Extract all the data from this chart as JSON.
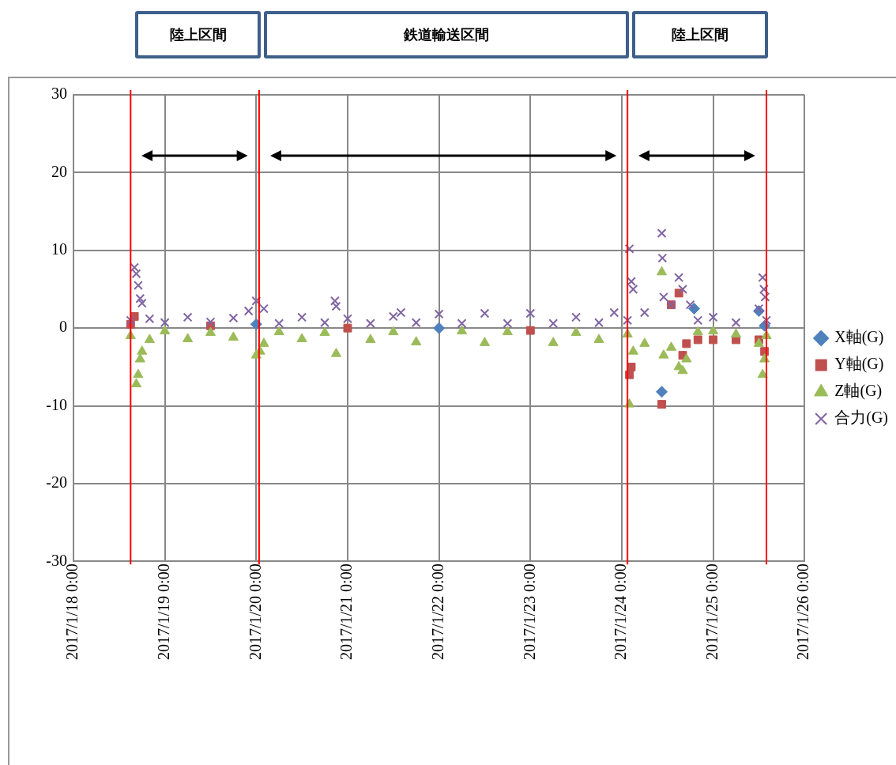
{
  "chart_data": {
    "type": "scatter",
    "annotations": [
      "陸上区間",
      "鉄道輸送区間",
      "陸上区間"
    ],
    "xlim": [
      "2017-01-18",
      "2017-01-26"
    ],
    "xticks": [
      {
        "value": "2017-01-18",
        "label": "2017/1/18 0:00"
      },
      {
        "value": "2017-01-19",
        "label": "2017/1/19 0:00"
      },
      {
        "value": "2017-01-20",
        "label": "2017/1/20 0:00"
      },
      {
        "value": "2017-01-21",
        "label": "2017/1/21 0:00"
      },
      {
        "value": "2017-01-22",
        "label": "2017/1/22 0:00"
      },
      {
        "value": "2017-01-23",
        "label": "2017/1/23 0:00"
      },
      {
        "value": "2017-01-24",
        "label": "2017/1/24 0:00"
      },
      {
        "value": "2017-01-25",
        "label": "2017/1/25 0:00"
      },
      {
        "value": "2017-01-26",
        "label": "2017/1/26 0:00"
      }
    ],
    "ylim": [
      -30,
      30
    ],
    "yticks": [
      -30,
      -20,
      -10,
      0,
      10,
      20,
      30
    ],
    "grid": true,
    "legend": "right",
    "ref_lines": [
      {
        "axis": "x",
        "value": "2017-01-18T15:00",
        "color": "#ff0000"
      },
      {
        "axis": "x",
        "value": "2017-01-20T00:45",
        "color": "#ff0000"
      },
      {
        "axis": "x",
        "value": "2017-01-24T01:30",
        "color": "#ff0000"
      },
      {
        "axis": "x",
        "value": "2017-01-25T14:00",
        "color": "#ff0000"
      }
    ],
    "series": [
      {
        "name": "X軸(G)",
        "color": "#4f81bd",
        "marker": "diamond",
        "x": [
          "2017-01-20T00:00",
          "2017-01-22T00:00",
          "2017-01-24T10:30",
          "2017-01-24T19:00",
          "2017-01-25T12:00",
          "2017-01-25T13:30"
        ],
        "values": [
          0.5,
          0,
          -8.2,
          2.5,
          2.2,
          0.3
        ]
      },
      {
        "name": "Y軸(G)",
        "color": "#c0504d",
        "marker": "square",
        "x": [
          "2017-01-18T15:00",
          "2017-01-18T16:00",
          "2017-01-19T12:00",
          "2017-01-21T00:00",
          "2017-01-23T00:00",
          "2017-01-24T02:00",
          "2017-01-24T02:30",
          "2017-01-24T10:30",
          "2017-01-24T13:00",
          "2017-01-24T15:00",
          "2017-01-24T16:00",
          "2017-01-24T17:00",
          "2017-01-24T20:00",
          "2017-01-25T00:00",
          "2017-01-25T06:00",
          "2017-01-25T12:00",
          "2017-01-25T13:30"
        ],
        "values": [
          0.5,
          1.5,
          0.3,
          0,
          -0.3,
          -6,
          -5,
          -9.8,
          3,
          4.5,
          -3.5,
          -2,
          -1.5,
          -1.5,
          -1.5,
          -1.5,
          -3
        ]
      },
      {
        "name": "Z軸(G)",
        "color": "#9bbb59",
        "marker": "triangle",
        "x": [
          "2017-01-18T15:00",
          "2017-01-18T16:30",
          "2017-01-18T17:00",
          "2017-01-18T17:30",
          "2017-01-18T18:00",
          "2017-01-18T20:00",
          "2017-01-19T00:00",
          "2017-01-19T06:00",
          "2017-01-19T12:00",
          "2017-01-19T18:00",
          "2017-01-20T00:00",
          "2017-01-20T01:00",
          "2017-01-20T02:00",
          "2017-01-20T06:00",
          "2017-01-20T12:00",
          "2017-01-20T18:00",
          "2017-01-20T21:00",
          "2017-01-21T06:00",
          "2017-01-21T12:00",
          "2017-01-21T18:00",
          "2017-01-22T06:00",
          "2017-01-22T12:00",
          "2017-01-22T18:00",
          "2017-01-23T06:00",
          "2017-01-23T12:00",
          "2017-01-23T18:00",
          "2017-01-24T01:30",
          "2017-01-24T02:00",
          "2017-01-24T03:00",
          "2017-01-24T06:00",
          "2017-01-24T10:30",
          "2017-01-24T11:00",
          "2017-01-24T13:00",
          "2017-01-24T15:00",
          "2017-01-24T16:00",
          "2017-01-24T17:00",
          "2017-01-24T20:00",
          "2017-01-25T00:00",
          "2017-01-25T06:00",
          "2017-01-25T12:00",
          "2017-01-25T13:00",
          "2017-01-25T13:30",
          "2017-01-25T14:00"
        ],
        "values": [
          -1,
          -7.2,
          -6,
          -4,
          -3,
          -1.5,
          -0.4,
          -1.4,
          -0.6,
          -1.2,
          -3.5,
          -3,
          -2,
          -0.5,
          -1.4,
          -0.6,
          -3.3,
          -1.5,
          -0.5,
          -1.8,
          -0.4,
          -1.9,
          -0.5,
          -1.9,
          -0.6,
          -1.5,
          -0.8,
          -9.8,
          -3,
          -2,
          7.2,
          -3.5,
          -2.5,
          -5,
          -5.5,
          -4,
          -0.5,
          -0.4,
          -0.8,
          -2,
          -6,
          -4,
          -1
        ]
      },
      {
        "name": "合力(G)",
        "color": "#8064a2",
        "marker": "cross",
        "x": [
          "2017-01-18T15:00",
          "2017-01-18T16:00",
          "2017-01-18T16:30",
          "2017-01-18T17:00",
          "2017-01-18T17:30",
          "2017-01-18T18:00",
          "2017-01-18T20:00",
          "2017-01-19T00:00",
          "2017-01-19T06:00",
          "2017-01-19T12:00",
          "2017-01-19T18:00",
          "2017-01-19T22:00",
          "2017-01-20T00:00",
          "2017-01-20T02:00",
          "2017-01-20T06:00",
          "2017-01-20T12:00",
          "2017-01-20T18:00",
          "2017-01-20T20:40",
          "2017-01-20T21:00",
          "2017-01-21T00:00",
          "2017-01-21T06:00",
          "2017-01-21T12:00",
          "2017-01-21T14:00",
          "2017-01-21T18:00",
          "2017-01-22T00:00",
          "2017-01-22T06:00",
          "2017-01-22T12:00",
          "2017-01-22T18:00",
          "2017-01-23T00:00",
          "2017-01-23T06:00",
          "2017-01-23T12:00",
          "2017-01-23T18:00",
          "2017-01-23T22:00",
          "2017-01-24T01:30",
          "2017-01-24T02:00",
          "2017-01-24T02:30",
          "2017-01-24T03:00",
          "2017-01-24T06:00",
          "2017-01-24T10:30",
          "2017-01-24T10:40",
          "2017-01-24T11:00",
          "2017-01-24T13:00",
          "2017-01-24T15:00",
          "2017-01-24T16:00",
          "2017-01-24T18:00",
          "2017-01-24T20:00",
          "2017-01-25T00:00",
          "2017-01-25T06:00",
          "2017-01-25T12:00",
          "2017-01-25T13:00",
          "2017-01-25T13:20",
          "2017-01-25T13:40",
          "2017-01-25T14:00"
        ],
        "values": [
          1,
          7.8,
          7,
          5.5,
          3.8,
          3.2,
          1.2,
          0.7,
          1.4,
          0.8,
          1.3,
          2.2,
          3.5,
          2.5,
          0.6,
          1.4,
          0.7,
          3.5,
          2.8,
          1.2,
          0.6,
          1.5,
          2,
          0.7,
          1.8,
          0.6,
          1.9,
          0.6,
          1.9,
          0.6,
          1.4,
          0.7,
          2,
          1,
          10.2,
          6,
          5,
          2,
          12.2,
          9,
          4,
          3,
          6.5,
          5,
          3,
          1,
          1.4,
          0.7,
          2.5,
          6.5,
          5,
          4,
          1
        ]
      }
    ]
  }
}
